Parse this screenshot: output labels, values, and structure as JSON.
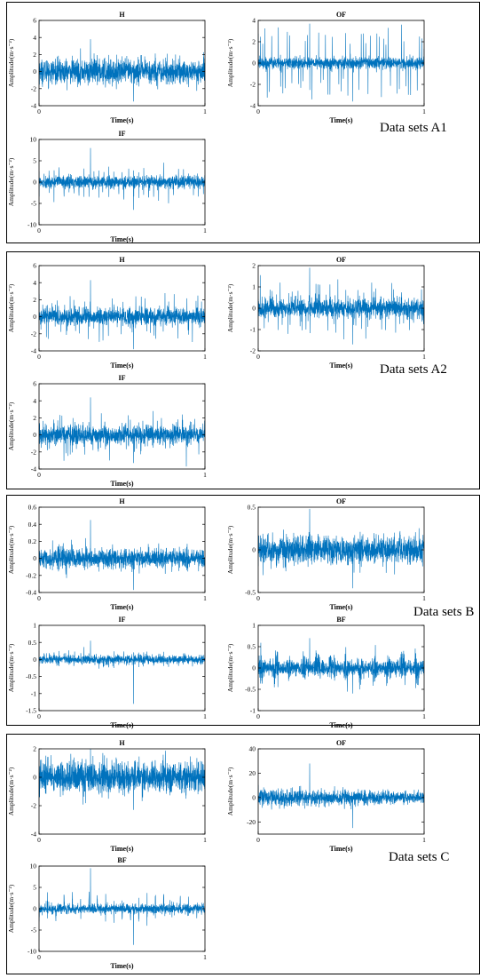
{
  "signal_color": "#0072BD",
  "groups": [
    {
      "label": "Data sets A1"
    },
    {
      "label": "Data sets A2"
    },
    {
      "label": "Data sets B"
    },
    {
      "label": "Data sets C"
    }
  ],
  "chart_data": [
    {
      "type": "line",
      "group": "Data sets A1",
      "title": "H",
      "xlabel": "Time(s)",
      "ylabel": "Amplitude(m·s⁻²)",
      "xlim": [
        0,
        1
      ],
      "ylim": [
        -4,
        6
      ],
      "yticks": [
        -4,
        -2,
        0,
        2,
        4,
        6
      ],
      "xticks": [
        0,
        1
      ],
      "signal": {
        "noise": 1.3,
        "impulse_amp": 1.5,
        "impulse_period": 0.05,
        "outliers": [
          3.8,
          -3.5
        ]
      }
    },
    {
      "type": "line",
      "group": "Data sets A1",
      "title": "OF",
      "xlabel": "Time(s)",
      "ylabel": "Amplitude(m·s⁻²)",
      "xlim": [
        0,
        1
      ],
      "ylim": [
        -4,
        4
      ],
      "yticks": [
        -4,
        -2,
        0,
        2,
        4
      ],
      "xticks": [
        0,
        1
      ],
      "signal": {
        "noise": 0.5,
        "impulse_amp": 3.3,
        "impulse_period": 0.0135,
        "outliers": [
          3.7,
          -3.6
        ]
      }
    },
    {
      "type": "line",
      "group": "Data sets A1",
      "title": "IF",
      "xlabel": "Time(s)",
      "ylabel": "Amplitude(m·s⁻²)",
      "xlim": [
        0,
        1
      ],
      "ylim": [
        -10,
        10
      ],
      "yticks": [
        -10,
        -5,
        0,
        5,
        10
      ],
      "xticks": [
        0,
        1
      ],
      "signal": {
        "noise": 1.3,
        "impulse_amp": 4.0,
        "impulse_period": 0.03,
        "outliers": [
          8.0,
          -6.5
        ]
      }
    },
    {
      "type": "line",
      "group": "Data sets A2",
      "title": "H",
      "xlabel": "Time(s)",
      "ylabel": "Amplitude(m·s⁻²)",
      "xlim": [
        0,
        1
      ],
      "ylim": [
        -4,
        6
      ],
      "yticks": [
        -4,
        -2,
        0,
        2,
        4,
        6
      ],
      "xticks": [
        0,
        1
      ],
      "signal": {
        "noise": 0.9,
        "impulse_amp": 2.6,
        "impulse_period": 0.011,
        "outliers": [
          4.3,
          -3.8
        ]
      }
    },
    {
      "type": "line",
      "group": "Data sets A2",
      "title": "OF",
      "xlabel": "Time(s)",
      "ylabel": "Amplitude(m·s⁻²)",
      "xlim": [
        0,
        1
      ],
      "ylim": [
        -2,
        2
      ],
      "yticks": [
        -2,
        -1,
        0,
        1,
        2
      ],
      "xticks": [
        0,
        1
      ],
      "signal": {
        "noise": 0.4,
        "impulse_amp": 1.2,
        "impulse_period": 0.012,
        "outliers": [
          1.9,
          -1.7
        ]
      }
    },
    {
      "type": "line",
      "group": "Data sets A2",
      "title": "IF",
      "xlabel": "Time(s)",
      "ylabel": "Amplitude(m·s⁻²)",
      "xlim": [
        0,
        1
      ],
      "ylim": [
        -4,
        6
      ],
      "yticks": [
        -4,
        -2,
        0,
        2,
        4,
        6
      ],
      "xticks": [
        0,
        1
      ],
      "signal": {
        "noise": 1.0,
        "impulse_amp": 2.3,
        "impulse_period": 0.0125,
        "outliers": [
          4.4,
          -3.3
        ]
      }
    },
    {
      "type": "line",
      "group": "Data sets B",
      "title": "H",
      "xlabel": "Time(s)",
      "ylabel": "Amplitude(m·s⁻²)",
      "xlim": [
        0,
        1
      ],
      "ylim": [
        -0.4,
        0.6
      ],
      "yticks": [
        -0.4,
        -0.2,
        0,
        0.2,
        0.4,
        0.6
      ],
      "xticks": [
        0,
        1
      ],
      "signal": {
        "noise": 0.1,
        "impulse_amp": 0.12,
        "impulse_period": 0.04,
        "outliers": [
          0.45,
          -0.37
        ]
      }
    },
    {
      "type": "line",
      "group": "Data sets B",
      "title": "OF",
      "xlabel": "Time(s)",
      "ylabel": "Amplitude(m·s⁻²)",
      "xlim": [
        0,
        1
      ],
      "ylim": [
        -0.5,
        0.5
      ],
      "yticks": [
        -0.5,
        0,
        0.5
      ],
      "xticks": [
        0,
        1
      ],
      "signal": {
        "noise": 0.15,
        "impulse_amp": 0.1,
        "impulse_period": 0.03,
        "outliers": [
          0.48,
          -0.45
        ]
      }
    },
    {
      "type": "line",
      "group": "Data sets B",
      "title": "IF",
      "xlabel": "Time(s)",
      "ylabel": "Amplitude(m·s⁻²)",
      "xlim": [
        0,
        1
      ],
      "ylim": [
        -1.5,
        1
      ],
      "yticks": [
        -1.5,
        -1,
        -0.5,
        0,
        0.5,
        1
      ],
      "xticks": [
        0,
        1
      ],
      "signal": {
        "noise": 0.12,
        "impulse_amp": 0.2,
        "impulse_period": 0.03,
        "outliers": [
          0.55,
          -1.3
        ]
      }
    },
    {
      "type": "line",
      "group": "Data sets B",
      "title": "BF",
      "xlabel": "Time(s)",
      "ylabel": "Amplitude(m·s⁻²)",
      "xlim": [
        0,
        1
      ],
      "ylim": [
        -1,
        1
      ],
      "yticks": [
        -1,
        -0.5,
        0,
        0.5,
        1
      ],
      "xticks": [
        0,
        1
      ],
      "signal": {
        "noise": 0.14,
        "impulse_amp": 0.1,
        "impulse_period": 0.03,
        "envelope_period": 0.085,
        "envelope_amp": 0.2,
        "outliers": [
          0.7,
          -0.6
        ]
      }
    },
    {
      "type": "line",
      "group": "Data sets C",
      "title": "H",
      "xlabel": "Time(s)",
      "ylabel": "Amplitude(m·s⁻²)",
      "xlim": [
        0,
        1
      ],
      "ylim": [
        -4,
        2
      ],
      "yticks": [
        -4,
        -2,
        0,
        2
      ],
      "xticks": [
        0,
        1
      ],
      "signal": {
        "noise": 1.0,
        "impulse_amp": 0.5,
        "impulse_period": 0.04,
        "outliers": [
          2.1,
          -2.3
        ]
      }
    },
    {
      "type": "line",
      "group": "Data sets C",
      "title": "OF",
      "xlabel": "Time(s)",
      "ylabel": "Amplitude(m·s⁻²)",
      "xlim": [
        0,
        1
      ],
      "ylim": [
        -30,
        40
      ],
      "yticks": [
        -20,
        0,
        20,
        40
      ],
      "xticks": [
        0,
        1
      ],
      "signal": {
        "noise": 6.0,
        "impulse_amp": 8.0,
        "impulse_period": 0.02,
        "decay": 0.5,
        "outliers": [
          28,
          -25
        ]
      }
    },
    {
      "type": "line",
      "group": "Data sets C",
      "title": "BF",
      "xlabel": "Time(s)",
      "ylabel": "Amplitude(m·s⁻²)",
      "xlim": [
        0,
        1
      ],
      "ylim": [
        -10,
        10
      ],
      "yticks": [
        -10,
        -5,
        0,
        5,
        10
      ],
      "xticks": [
        0,
        1
      ],
      "signal": {
        "noise": 1.0,
        "impulse_amp": 3.5,
        "impulse_period": 0.05,
        "outliers": [
          9.5,
          -8.5
        ]
      }
    }
  ]
}
